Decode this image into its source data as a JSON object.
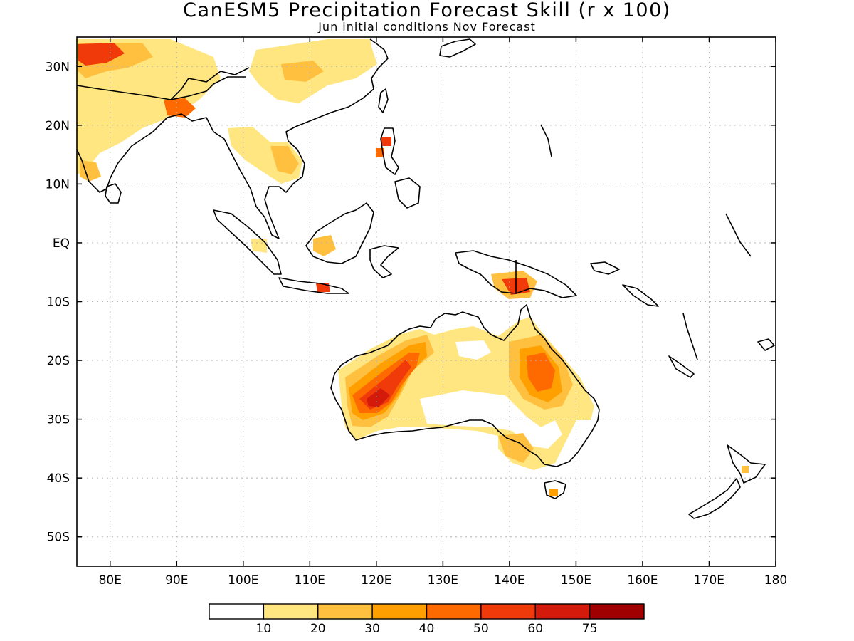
{
  "title": "CanESM5 Precipitation Forecast Skill (r x 100)",
  "subtitle": "Jun initial conditions  Nov Forecast",
  "map": {
    "lon_range": [
      75,
      180
    ],
    "lat_range": [
      -55,
      35
    ],
    "lon_ticks": [
      {
        "value": 80,
        "label": "80E"
      },
      {
        "value": 90,
        "label": "90E"
      },
      {
        "value": 100,
        "label": "100E"
      },
      {
        "value": 110,
        "label": "110E"
      },
      {
        "value": 120,
        "label": "120E"
      },
      {
        "value": 130,
        "label": "130E"
      },
      {
        "value": 140,
        "label": "140E"
      },
      {
        "value": 150,
        "label": "150E"
      },
      {
        "value": 160,
        "label": "160E"
      },
      {
        "value": 170,
        "label": "170E"
      },
      {
        "value": 180,
        "label": "180"
      }
    ],
    "lat_ticks": [
      {
        "value": 30,
        "label": "30N"
      },
      {
        "value": 20,
        "label": "20N"
      },
      {
        "value": 10,
        "label": "10N"
      },
      {
        "value": 0,
        "label": "EQ"
      },
      {
        "value": -10,
        "label": "10S"
      },
      {
        "value": -20,
        "label": "20S"
      },
      {
        "value": -30,
        "label": "30S"
      },
      {
        "value": -40,
        "label": "40S"
      },
      {
        "value": -50,
        "label": "50S"
      }
    ],
    "grid": true
  },
  "colorbar": {
    "labels": [
      "10",
      "20",
      "30",
      "40",
      "50",
      "60",
      "75"
    ],
    "colors": [
      "#ffffff",
      "#ffe680",
      "#ffc040",
      "#ffa000",
      "#ff6a00",
      "#f03a0a",
      "#d41a0a",
      "#a00000"
    ]
  },
  "colors": {
    "coast": "#000000",
    "grid": "#b4b4b4"
  }
}
